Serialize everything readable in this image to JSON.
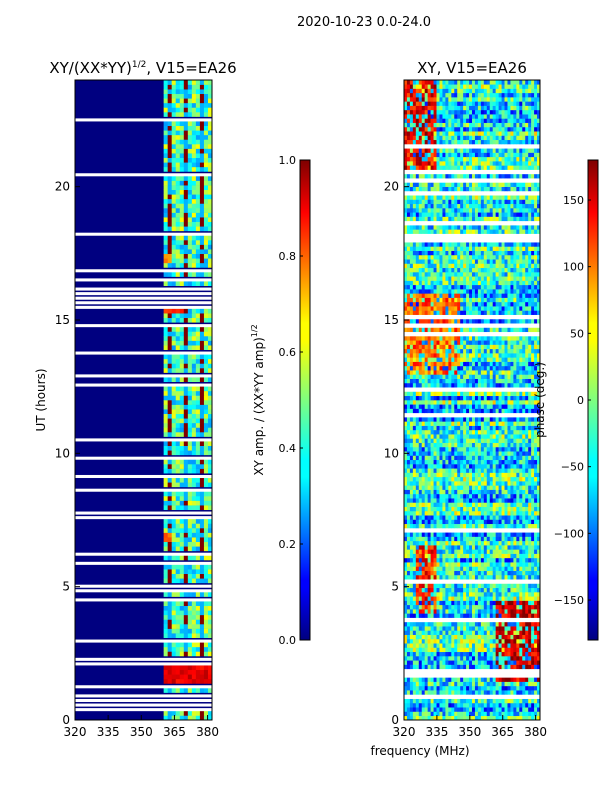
{
  "figure": {
    "suptitle": "2020-10-23 0.0-24.0",
    "common_xlabel": "frequency (MHz)"
  },
  "chart_data": [
    {
      "type": "heatmap",
      "title": "XY/(XX*YY)",
      "title_exponent": "1/2",
      "title_suffix": ", V15=EA26",
      "xlabel": "",
      "ylabel": "UT (hours)",
      "xlim": [
        320,
        382
      ],
      "ylim": [
        0,
        24
      ],
      "xticks": [
        320,
        335,
        350,
        365,
        380
      ],
      "yticks": [
        0,
        5,
        10,
        15,
        20
      ],
      "colormap": "jet",
      "colorbar": {
        "label": "XY amp. / (XX*YY amp)",
        "label_exponent": "1/2",
        "range": [
          0.0,
          1.0
        ],
        "ticks": [
          "0.0",
          "0.2",
          "0.4",
          "0.6",
          "0.8",
          "1.0"
        ],
        "tick_values": [
          0.0,
          0.2,
          0.4,
          0.6,
          0.8,
          1.0
        ]
      },
      "active_band_mhz": [
        360,
        382
      ],
      "active_level": 0.45,
      "background_level": 0.0,
      "bright_patches": [
        {
          "f": [
            361,
            382
          ],
          "ut": [
            1.3,
            2.0
          ],
          "value": 0.9
        },
        {
          "f": [
            361,
            370
          ],
          "ut": [
            15.2,
            16.2
          ],
          "value": 0.85
        },
        {
          "f": [
            361,
            364
          ],
          "ut": [
            6.7,
            7.0
          ],
          "value": 0.8
        },
        {
          "f": [
            361,
            364
          ],
          "ut": [
            17.2,
            17.5
          ],
          "value": 0.75
        }
      ],
      "gaps_ut": [
        [
          0.5,
          1.0
        ],
        [
          1.15,
          1.25
        ],
        [
          16.45,
          16.55
        ],
        [
          20.45,
          20.6
        ]
      ]
    },
    {
      "type": "heatmap",
      "title": "XY, V15=EA26",
      "xlabel": "",
      "ylabel": "",
      "xlim": [
        320,
        382
      ],
      "ylim": [
        0,
        24
      ],
      "xticks": [
        320,
        335,
        350,
        365,
        380
      ],
      "yticks": [
        0,
        5,
        10,
        15,
        20
      ],
      "colormap": "jet",
      "colorbar": {
        "label": "phase (deg.)",
        "range": [
          -180,
          180
        ],
        "ticks": [
          "150",
          "100",
          "50",
          "0",
          "−50",
          "−100",
          "−150"
        ],
        "tick_values": [
          150,
          100,
          50,
          0,
          -50,
          -100,
          -150
        ]
      },
      "mean_phase_deg": -40,
      "warm_regions": [
        {
          "f": [
            320,
            345
          ],
          "ut": [
            13,
            16
          ],
          "phase": 100
        },
        {
          "f": [
            325,
            335
          ],
          "ut": [
            4,
            6.5
          ],
          "phase": 120
        },
        {
          "f": [
            320,
            335
          ],
          "ut": [
            20.5,
            24
          ],
          "phase": 140
        },
        {
          "f": [
            362,
            382
          ],
          "ut": [
            1.5,
            4.5
          ],
          "phase": 150
        }
      ],
      "gaps_ut": [
        [
          0.8,
          1.0
        ],
        [
          12.4,
          12.55
        ],
        [
          16.45,
          16.55
        ],
        [
          20.45,
          20.6
        ]
      ]
    }
  ]
}
